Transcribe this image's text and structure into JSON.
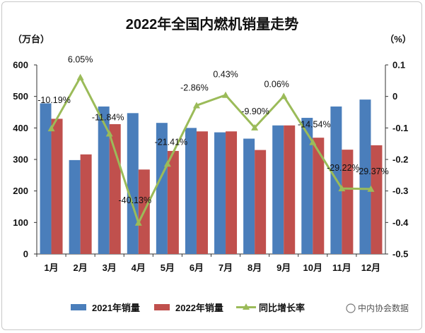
{
  "chart_data": {
    "type": "bar",
    "title": "2022年全国内燃机销量走势",
    "categories": [
      "1月",
      "2月",
      "3月",
      "4月",
      "5月",
      "6月",
      "7月",
      "8月",
      "9月",
      "10月",
      "11月",
      "12月"
    ],
    "series": [
      {
        "name": "2021年销量",
        "type": "bar",
        "axis": "left",
        "color": "#4a7ebb",
        "values": [
          478,
          298,
          468,
          447,
          416,
          400,
          386,
          366,
          408,
          432,
          468,
          490
        ]
      },
      {
        "name": "2022年销量",
        "type": "bar",
        "axis": "left",
        "color": "#c0504d",
        "values": [
          429,
          316,
          412,
          268,
          327,
          389,
          389,
          330,
          408,
          369,
          331,
          345
        ]
      },
      {
        "name": "同比增长率",
        "type": "line",
        "axis": "right",
        "color": "#9bbb59",
        "values": [
          -0.1019,
          0.0605,
          -0.1184,
          -0.4013,
          -0.2141,
          -0.0286,
          0.0043,
          -0.099,
          0.0006,
          -0.1454,
          -0.2922,
          -0.2937
        ],
        "labels": [
          "-10.19%",
          "6.05%",
          "-11.84%",
          "-40.13%",
          "-21.41%",
          "-2.86%",
          "0.43%",
          "-9.90%",
          "0.06%",
          "-14.54%",
          "-29.22%",
          "-29.37%"
        ]
      }
    ],
    "left_axis": {
      "unit": "（万台）",
      "ylim": [
        0,
        600
      ],
      "ticks": [
        "0",
        "100",
        "200",
        "300",
        "400",
        "500",
        "600"
      ]
    },
    "right_axis": {
      "unit": "（%）",
      "ylim": [
        -0.5,
        0.1
      ],
      "ticks": [
        "-0.5",
        "-0.4",
        "-0.3",
        "-0.2",
        "-0.1",
        "0",
        "0.1"
      ]
    },
    "grid": false,
    "legend": "bottom"
  },
  "watermark": "中内协会数据"
}
